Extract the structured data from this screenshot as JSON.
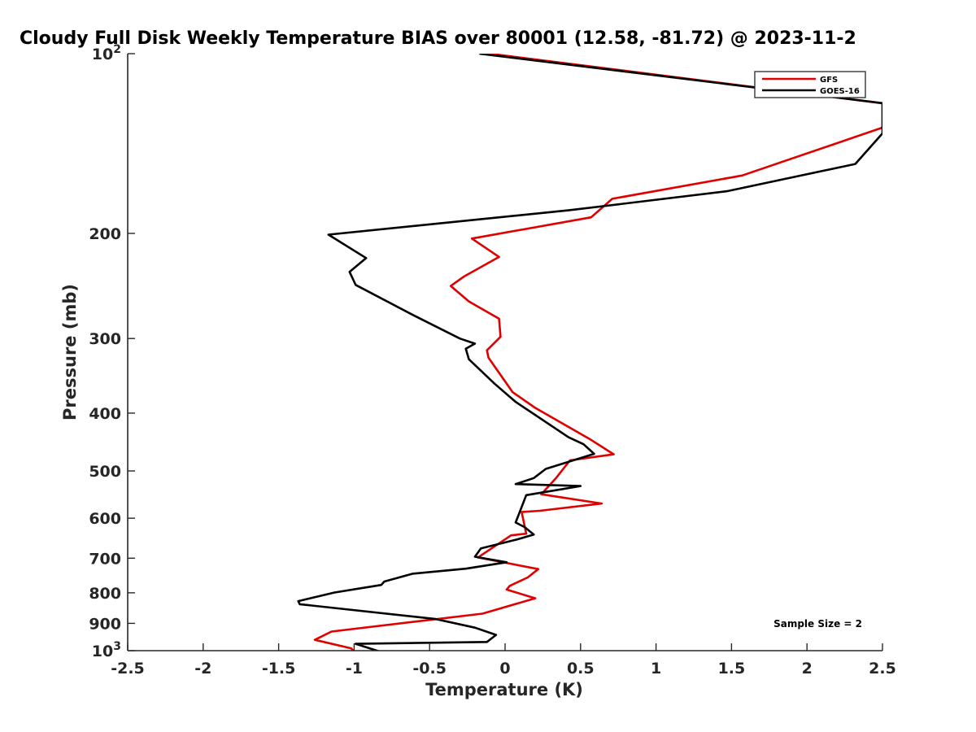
{
  "chart_data": {
    "type": "line",
    "title": "Cloudy Full Disk Weekly Temperature BIAS over 80001 (12.58, -81.72) @ 2023-11-2",
    "xlabel": "Temperature (K)",
    "ylabel": "Pressure (mb)",
    "xlim": [
      -2.5,
      2.5
    ],
    "ylim": [
      100,
      1000
    ],
    "y_scale": "log",
    "y_reversed": true,
    "grid": false,
    "legend_position": "top-right",
    "x_ticks": [
      -2.5,
      -2,
      -1.5,
      -1,
      -0.5,
      0,
      0.5,
      1,
      1.5,
      2,
      2.5
    ],
    "x_tick_labels": [
      "-2.5",
      "-2",
      "-1.5",
      "-1",
      "-0.5",
      "0",
      "0.5",
      "1",
      "1.5",
      "2",
      "2.5"
    ],
    "y_ticks": [
      {
        "value": 100,
        "label": "10",
        "sup": "2"
      },
      {
        "value": 200,
        "label": "200"
      },
      {
        "value": 300,
        "label": "300"
      },
      {
        "value": 400,
        "label": "400"
      },
      {
        "value": 500,
        "label": "500"
      },
      {
        "value": 600,
        "label": "600"
      },
      {
        "value": 700,
        "label": "700"
      },
      {
        "value": 800,
        "label": "800"
      },
      {
        "value": 900,
        "label": "900"
      },
      {
        "value": 1000,
        "label": "10",
        "sup": "3"
      }
    ],
    "series": [
      {
        "name": "GFS",
        "color": "#e00000",
        "x": [
          -0.1,
          2.6,
          2.5,
          1.57,
          0.71,
          0.57,
          -0.22,
          -0.04,
          -0.27,
          -0.36,
          -0.24,
          -0.04,
          -0.03,
          -0.12,
          -0.11,
          0.05,
          0.2,
          0.56,
          0.72,
          0.43,
          0.34,
          0.24,
          0.64,
          0.23,
          0.11,
          0.14,
          0.04,
          -0.18,
          0.22,
          0.15,
          0.03,
          0.01,
          0.2,
          -0.15,
          -1.15,
          -1.26,
          -1.02,
          -0.99
        ],
        "y": [
          100,
          122,
          133,
          160,
          175,
          188,
          204,
          219,
          236,
          245,
          260,
          278,
          298,
          314,
          323,
          369,
          392,
          442,
          469,
          480,
          513,
          547,
          567,
          583,
          586,
          637,
          641,
          698,
          730,
          754,
          779,
          790,
          817,
          867,
          929,
          959,
          991,
          1010
        ]
      },
      {
        "name": "GOES-16",
        "color": "#000000",
        "x": [
          -0.17,
          2.5,
          2.5,
          2.32,
          1.47,
          0.42,
          -1.17,
          -0.92,
          -1.03,
          -0.99,
          -0.61,
          -0.3,
          -0.2,
          -0.26,
          -0.24,
          -0.07,
          0.07,
          0.42,
          0.52,
          0.59,
          0.27,
          0.19,
          0.07,
          0.5,
          0.14,
          0.07,
          0.13,
          0.19,
          0.08,
          -0.16,
          -0.2,
          0.01,
          -0.26,
          -0.61,
          -0.8,
          -0.82,
          -1.13,
          -1.37,
          -1.36,
          -0.46,
          -0.2,
          -0.06,
          -0.12,
          -0.99,
          -0.8
        ],
        "y": [
          100,
          121,
          136,
          153,
          170,
          183,
          201,
          220,
          232,
          244,
          274,
          300,
          306,
          312,
          325,
          357,
          383,
          439,
          451,
          468,
          496,
          514,
          526,
          530,
          549,
          610,
          621,
          639,
          651,
          674,
          696,
          711,
          729,
          743,
          766,
          776,
          799,
          826,
          836,
          885,
          915,
          941,
          967,
          974,
          1009
        ]
      }
    ],
    "annotations": [
      {
        "text": "Sample Size = 2"
      }
    ]
  }
}
